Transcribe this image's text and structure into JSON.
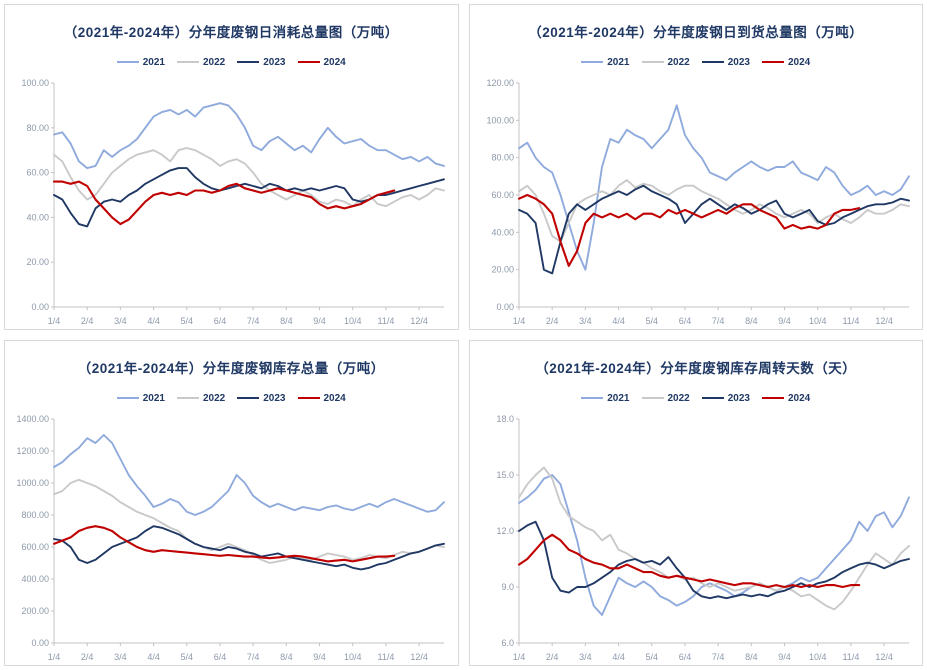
{
  "page": {
    "background": "#ffffff"
  },
  "colors": {
    "title": "#1f3864",
    "axis": "#c3c3c3",
    "tick_text": "#8d99aa"
  },
  "chart_data": [
    {
      "type": "line",
      "title": "（2021年-2024年）分年度废钢日消耗总量图（万吨）",
      "xlabel": "",
      "ylabel": "",
      "ylim": [
        0,
        100
      ],
      "yticks": [
        0,
        20,
        40,
        60,
        80,
        100
      ],
      "decimals": 2,
      "grid": false,
      "legend_position": "top",
      "x_labels": [
        "1/4",
        "2/4",
        "3/4",
        "4/4",
        "5/4",
        "6/4",
        "7/4",
        "8/4",
        "9/4",
        "10/4",
        "11/4",
        "12/4"
      ],
      "series": [
        {
          "name": "2021",
          "color": "#8faadc",
          "values": [
            77,
            78,
            73,
            65,
            62,
            63,
            70,
            67,
            70,
            72,
            75,
            80,
            85,
            87,
            88,
            86,
            88,
            85,
            89,
            90,
            91,
            90,
            86,
            80,
            72,
            70,
            74,
            76,
            73,
            70,
            72,
            69,
            75,
            80,
            76,
            73,
            74,
            75,
            72,
            70,
            70,
            68,
            66,
            67,
            65,
            67,
            64,
            63
          ]
        },
        {
          "name": "2022",
          "color": "#c9c9c9",
          "values": [
            68,
            65,
            58,
            52,
            48,
            50,
            55,
            60,
            63,
            66,
            68,
            69,
            70,
            68,
            65,
            70,
            71,
            70,
            68,
            66,
            63,
            65,
            66,
            64,
            60,
            55,
            52,
            50,
            48,
            50,
            52,
            50,
            47,
            46,
            48,
            47,
            45,
            48,
            50,
            46,
            45,
            47,
            49,
            50,
            48,
            50,
            53,
            52
          ]
        },
        {
          "name": "2023",
          "color": "#203864",
          "values": [
            50,
            48,
            42,
            37,
            36,
            44,
            47,
            48,
            47,
            50,
            52,
            55,
            57,
            59,
            61,
            62,
            62,
            58,
            55,
            53,
            52,
            53,
            54,
            55,
            54,
            53,
            55,
            54,
            52,
            53,
            52,
            53,
            52,
            53,
            54,
            53,
            48,
            47,
            48,
            50,
            50,
            51,
            52,
            53,
            54,
            55,
            56,
            57
          ]
        },
        {
          "name": "2024",
          "color": "#c00000",
          "values": [
            56,
            56,
            55,
            56,
            54,
            48,
            44,
            40,
            37,
            39,
            43,
            47,
            50,
            51,
            50,
            51,
            50,
            52,
            52,
            51,
            52,
            54,
            55,
            53,
            52,
            51,
            52,
            53,
            52,
            51,
            50,
            49,
            46,
            44,
            45,
            44,
            45,
            46,
            48,
            50,
            51,
            52
          ]
        }
      ]
    },
    {
      "type": "line",
      "title": "（2021年-2024年）分年度废钢日到货总量图（万吨）",
      "xlabel": "",
      "ylabel": "",
      "ylim": [
        0,
        120
      ],
      "yticks": [
        0,
        20,
        40,
        60,
        80,
        100,
        120
      ],
      "decimals": 2,
      "grid": false,
      "legend_position": "top",
      "x_labels": [
        "1/4",
        "2/4",
        "3/4",
        "4/4",
        "5/4",
        "6/4",
        "7/4",
        "8/4",
        "9/4",
        "10/4",
        "11/4",
        "12/4"
      ],
      "series": [
        {
          "name": "2021",
          "color": "#8faadc",
          "values": [
            85,
            88,
            80,
            75,
            72,
            60,
            45,
            30,
            20,
            45,
            75,
            90,
            88,
            95,
            92,
            90,
            85,
            90,
            95,
            108,
            92,
            85,
            80,
            72,
            70,
            68,
            72,
            75,
            78,
            75,
            73,
            75,
            75,
            78,
            72,
            70,
            68,
            75,
            72,
            65,
            60,
            62,
            65,
            60,
            62,
            60,
            63,
            70
          ]
        },
        {
          "name": "2022",
          "color": "#c9c9c9",
          "values": [
            62,
            65,
            60,
            50,
            38,
            35,
            45,
            55,
            58,
            60,
            62,
            60,
            65,
            68,
            64,
            66,
            65,
            62,
            60,
            63,
            65,
            65,
            62,
            60,
            58,
            55,
            52,
            50,
            52,
            55,
            53,
            50,
            48,
            50,
            52,
            50,
            45,
            48,
            50,
            47,
            45,
            48,
            52,
            50,
            50,
            52,
            55,
            54
          ]
        },
        {
          "name": "2023",
          "color": "#203864",
          "values": [
            52,
            50,
            45,
            20,
            18,
            35,
            50,
            55,
            52,
            55,
            58,
            60,
            62,
            60,
            63,
            65,
            62,
            60,
            58,
            55,
            45,
            50,
            55,
            58,
            55,
            52,
            55,
            53,
            50,
            52,
            55,
            57,
            50,
            48,
            50,
            52,
            46,
            44,
            45,
            48,
            50,
            52,
            54,
            55,
            55,
            56,
            58,
            57
          ]
        },
        {
          "name": "2024",
          "color": "#c00000",
          "values": [
            58,
            60,
            58,
            55,
            50,
            35,
            22,
            30,
            45,
            50,
            48,
            50,
            48,
            50,
            47,
            50,
            50,
            48,
            52,
            50,
            52,
            50,
            48,
            50,
            52,
            50,
            53,
            55,
            55,
            52,
            50,
            48,
            42,
            44,
            42,
            43,
            42,
            44,
            50,
            52,
            52,
            53
          ]
        }
      ]
    },
    {
      "type": "line",
      "title": "（2021年-2024年）分年度废钢库存总量（万吨）",
      "xlabel": "",
      "ylabel": "",
      "ylim": [
        0,
        1400
      ],
      "yticks": [
        0,
        200,
        400,
        600,
        800,
        1000,
        1200,
        1400
      ],
      "decimals": 2,
      "grid": false,
      "legend_position": "top",
      "x_labels": [
        "1/4",
        "2/4",
        "3/4",
        "4/4",
        "5/4",
        "6/4",
        "7/4",
        "8/4",
        "9/4",
        "10/4",
        "11/4",
        "12/4"
      ],
      "series": [
        {
          "name": "2021",
          "color": "#8faadc",
          "values": [
            1100,
            1130,
            1180,
            1220,
            1280,
            1250,
            1300,
            1250,
            1150,
            1050,
            980,
            920,
            850,
            870,
            900,
            880,
            820,
            800,
            820,
            850,
            900,
            950,
            1050,
            1000,
            920,
            880,
            850,
            870,
            850,
            830,
            850,
            840,
            830,
            850,
            860,
            840,
            830,
            850,
            870,
            850,
            880,
            900,
            880,
            860,
            840,
            820,
            830,
            880
          ]
        },
        {
          "name": "2022",
          "color": "#c9c9c9",
          "values": [
            930,
            950,
            1000,
            1020,
            1000,
            980,
            950,
            920,
            880,
            850,
            820,
            800,
            780,
            750,
            720,
            700,
            650,
            620,
            600,
            580,
            600,
            620,
            600,
            580,
            550,
            520,
            500,
            510,
            520,
            540,
            530,
            520,
            540,
            560,
            550,
            540,
            520,
            530,
            550,
            540,
            530,
            550,
            570,
            560,
            570,
            590,
            610,
            600
          ]
        },
        {
          "name": "2023",
          "color": "#203864",
          "values": [
            650,
            640,
            600,
            520,
            500,
            520,
            560,
            600,
            620,
            640,
            660,
            700,
            730,
            720,
            700,
            680,
            650,
            620,
            600,
            590,
            580,
            600,
            590,
            570,
            560,
            540,
            550,
            560,
            540,
            530,
            520,
            510,
            500,
            490,
            480,
            490,
            470,
            460,
            470,
            490,
            500,
            520,
            540,
            560,
            570,
            590,
            610,
            620
          ]
        },
        {
          "name": "2024",
          "color": "#c00000",
          "values": [
            620,
            640,
            660,
            700,
            720,
            730,
            720,
            700,
            660,
            630,
            600,
            580,
            570,
            580,
            575,
            570,
            565,
            560,
            555,
            550,
            545,
            550,
            545,
            540,
            540,
            535,
            530,
            535,
            540,
            545,
            540,
            530,
            520,
            510,
            515,
            520,
            510,
            520,
            530,
            540,
            540,
            545
          ]
        }
      ]
    },
    {
      "type": "line",
      "title": "（2021年-2024年）分年度废钢库存周转天数（天）",
      "xlabel": "",
      "ylabel": "",
      "ylim": [
        6,
        18
      ],
      "yticks": [
        6,
        9,
        12,
        15,
        18
      ],
      "decimals": 1,
      "grid": false,
      "legend_position": "top",
      "x_labels": [
        "1/4",
        "2/4",
        "3/4",
        "4/4",
        "5/4",
        "6/4",
        "7/4",
        "8/4",
        "9/4",
        "10/4",
        "11/4",
        "12/4"
      ],
      "series": [
        {
          "name": "2021",
          "color": "#8faadc",
          "values": [
            13.5,
            13.8,
            14.2,
            14.8,
            15.0,
            14.5,
            13.0,
            11.5,
            9.5,
            8.0,
            7.5,
            8.5,
            9.5,
            9.2,
            9.0,
            9.3,
            9.0,
            8.5,
            8.3,
            8.0,
            8.2,
            8.5,
            9.0,
            9.2,
            9.0,
            8.8,
            8.5,
            8.7,
            9.0,
            9.2,
            9.0,
            8.8,
            9.0,
            9.2,
            9.5,
            9.3,
            9.5,
            10.0,
            10.5,
            11.0,
            11.5,
            12.5,
            12.0,
            12.8,
            13.0,
            12.2,
            12.8,
            13.8
          ]
        },
        {
          "name": "2022",
          "color": "#c9c9c9",
          "values": [
            13.8,
            14.5,
            15.0,
            15.4,
            14.8,
            13.5,
            12.8,
            12.5,
            12.2,
            12.0,
            11.5,
            11.8,
            11.0,
            10.8,
            10.5,
            10.3,
            10.0,
            9.8,
            9.5,
            9.6,
            9.4,
            9.5,
            9.2,
            9.0,
            9.2,
            9.0,
            8.8,
            8.9,
            9.0,
            9.2,
            9.0,
            8.8,
            9.0,
            8.8,
            8.5,
            8.6,
            8.3,
            8.0,
            7.8,
            8.2,
            8.8,
            9.5,
            10.2,
            10.8,
            10.5,
            10.2,
            10.8,
            11.2
          ]
        },
        {
          "name": "2023",
          "color": "#203864",
          "values": [
            12.0,
            12.3,
            12.5,
            11.5,
            9.5,
            8.8,
            8.7,
            9.0,
            9.0,
            9.2,
            9.5,
            9.8,
            10.2,
            10.4,
            10.5,
            10.3,
            10.4,
            10.2,
            10.6,
            10.0,
            9.5,
            8.8,
            8.5,
            8.4,
            8.5,
            8.4,
            8.5,
            8.6,
            8.5,
            8.6,
            8.5,
            8.7,
            8.8,
            9.0,
            9.2,
            9.0,
            9.2,
            9.3,
            9.5,
            9.8,
            10.0,
            10.2,
            10.3,
            10.2,
            10.0,
            10.2,
            10.4,
            10.5
          ]
        },
        {
          "name": "2024",
          "color": "#c00000",
          "values": [
            10.2,
            10.5,
            11.0,
            11.5,
            11.8,
            11.5,
            11.0,
            10.8,
            10.5,
            10.3,
            10.2,
            10.0,
            10.0,
            10.2,
            10.0,
            9.8,
            9.8,
            9.6,
            9.5,
            9.6,
            9.5,
            9.4,
            9.3,
            9.4,
            9.3,
            9.2,
            9.1,
            9.2,
            9.2,
            9.1,
            9.0,
            9.1,
            9.0,
            9.1,
            9.0,
            9.1,
            9.0,
            9.1,
            9.1,
            9.0,
            9.1,
            9.1
          ]
        }
      ]
    }
  ]
}
